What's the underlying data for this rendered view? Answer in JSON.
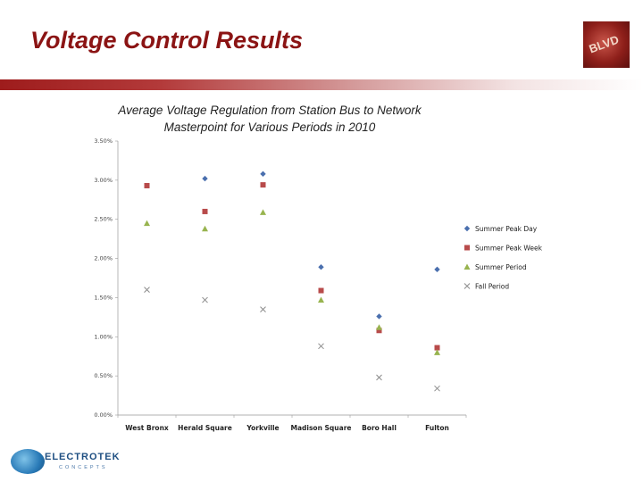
{
  "slide": {
    "title": "Voltage Control Results",
    "company_name": "ELECTROTEK",
    "company_tagline": "CONCEPTS",
    "corner_logo_text": "BLVD"
  },
  "colors": {
    "title": "#8b1414",
    "summer_peak_day": "#4a6fae",
    "summer_peak_week": "#b84b4b",
    "summer_period": "#98b44f",
    "fall_period": "#8c8c8c"
  },
  "chart_data": {
    "type": "scatter",
    "title_lines": [
      "Average Voltage Regulation from Station Bus to Network",
      "Masterpoint  for Various Periods in 2010"
    ],
    "categories": [
      "West Bronx",
      "Herald Square",
      "Yorkville",
      "Madison Square",
      "Boro Hall",
      "Fulton"
    ],
    "y_ticks": [
      "0.00%",
      "0.50%",
      "1.00%",
      "1.50%",
      "2.00%",
      "2.50%",
      "3.00%",
      "3.50%"
    ],
    "ylim": [
      0,
      3.5
    ],
    "xlabel": "",
    "ylabel": "",
    "legend_position": "right",
    "series": [
      {
        "name": "Summer Peak Day",
        "marker": "diamond",
        "color": "#4a6fae",
        "values": [
          null,
          3.02,
          3.08,
          1.89,
          1.26,
          1.86
        ]
      },
      {
        "name": "Summer Peak Week",
        "marker": "square",
        "color": "#b84b4b",
        "values": [
          2.93,
          2.6,
          2.94,
          1.59,
          1.08,
          0.86
        ]
      },
      {
        "name": "Summer Period",
        "marker": "triangle",
        "color": "#98b44f",
        "values": [
          2.45,
          2.38,
          2.59,
          1.47,
          1.12,
          0.8
        ]
      },
      {
        "name": "Fall Period",
        "marker": "x",
        "color": "#8c8c8c",
        "values": [
          1.6,
          1.47,
          1.35,
          0.88,
          0.48,
          0.34
        ]
      }
    ]
  }
}
